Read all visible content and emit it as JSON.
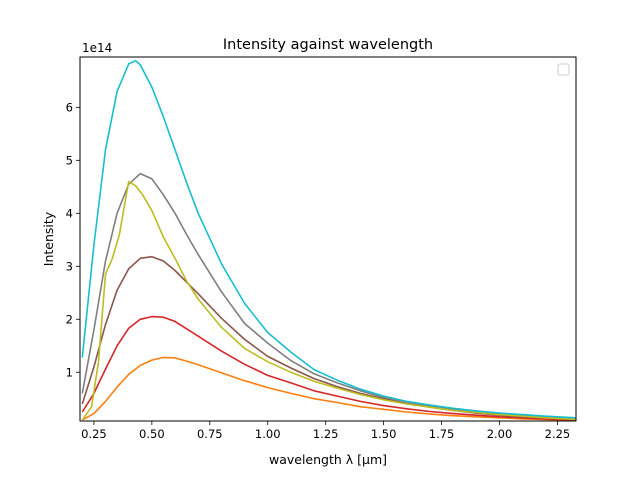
{
  "chart_data": {
    "type": "line",
    "title": "Intensity against wavelength",
    "xlabel": "wavelength λ [μm]",
    "ylabel": "Intensity",
    "y_offset_label": "1e14",
    "y_scale": 100000000000000.0,
    "xlim": [
      0.19,
      2.33
    ],
    "ylim": [
      0.08,
      6.95
    ],
    "x_ticks": [
      0.25,
      0.5,
      0.75,
      1.0,
      1.25,
      1.5,
      1.75,
      2.0,
      2.25
    ],
    "x_tick_labels": [
      "0.25",
      "0.50",
      "0.75",
      "1.00",
      "1.25",
      "1.50",
      "1.75",
      "2.00",
      "2.25"
    ],
    "y_ticks": [
      1,
      2,
      3,
      4,
      5,
      6
    ],
    "y_tick_labels": [
      "1",
      "2",
      "3",
      "4",
      "5",
      "6"
    ],
    "grid": false,
    "legend": {
      "placement": "top-right",
      "entries": []
    },
    "series": [
      {
        "color": "#ff7f0e",
        "x": [
          0.2,
          0.25,
          0.3,
          0.35,
          0.4,
          0.45,
          0.5,
          0.55,
          0.6,
          0.65,
          0.7,
          0.8,
          0.9,
          1.0,
          1.1,
          1.2,
          1.3,
          1.4,
          1.5,
          1.6,
          1.7,
          1.8,
          1.9,
          2.0,
          2.1,
          2.2,
          2.33
        ],
        "y": [
          0.1,
          0.22,
          0.45,
          0.72,
          0.96,
          1.13,
          1.23,
          1.28,
          1.27,
          1.21,
          1.14,
          0.99,
          0.84,
          0.71,
          0.6,
          0.5,
          0.43,
          0.35,
          0.3,
          0.25,
          0.21,
          0.18,
          0.16,
          0.14,
          0.12,
          0.11,
          0.09
        ]
      },
      {
        "color": "#d62728",
        "x": [
          0.2,
          0.25,
          0.3,
          0.35,
          0.4,
          0.45,
          0.5,
          0.55,
          0.6,
          0.65,
          0.7,
          0.8,
          0.9,
          1.0,
          1.1,
          1.2,
          1.3,
          1.4,
          1.5,
          1.6,
          1.7,
          1.8,
          1.9,
          2.0,
          2.1,
          2.2,
          2.33
        ],
        "y": [
          0.25,
          0.6,
          1.06,
          1.5,
          1.83,
          2.0,
          2.05,
          2.04,
          1.96,
          1.82,
          1.68,
          1.4,
          1.15,
          0.94,
          0.8,
          0.65,
          0.55,
          0.45,
          0.37,
          0.31,
          0.26,
          0.22,
          0.19,
          0.16,
          0.14,
          0.12,
          0.1
        ]
      },
      {
        "color": "#8c564b",
        "x": [
          0.2,
          0.25,
          0.3,
          0.35,
          0.4,
          0.45,
          0.5,
          0.55,
          0.6,
          0.65,
          0.7,
          0.8,
          0.9,
          1.0,
          1.1,
          1.2,
          1.3,
          1.4,
          1.5,
          1.6,
          1.7,
          1.8,
          1.9,
          2.0,
          2.1,
          2.2,
          2.33
        ],
        "y": [
          0.4,
          1.1,
          1.9,
          2.55,
          2.95,
          3.15,
          3.18,
          3.1,
          2.92,
          2.7,
          2.48,
          2.02,
          1.62,
          1.3,
          1.08,
          0.88,
          0.73,
          0.6,
          0.5,
          0.41,
          0.34,
          0.28,
          0.23,
          0.19,
          0.16,
          0.14,
          0.11
        ]
      },
      {
        "color": "#7f7f7f",
        "x": [
          0.2,
          0.25,
          0.3,
          0.35,
          0.4,
          0.45,
          0.5,
          0.55,
          0.6,
          0.65,
          0.7,
          0.8,
          0.9,
          1.0,
          1.1,
          1.2,
          1.3,
          1.4,
          1.5,
          1.6,
          1.7,
          1.8,
          1.9,
          2.0,
          2.1,
          2.2,
          2.33
        ],
        "y": [
          0.6,
          1.8,
          3.1,
          4.0,
          4.55,
          4.75,
          4.65,
          4.35,
          4.0,
          3.6,
          3.22,
          2.52,
          1.92,
          1.55,
          1.22,
          0.97,
          0.8,
          0.65,
          0.53,
          0.44,
          0.36,
          0.3,
          0.25,
          0.21,
          0.18,
          0.15,
          0.12
        ]
      },
      {
        "color": "#bcbd22",
        "x": [
          0.2,
          0.24,
          0.27,
          0.3,
          0.33,
          0.36,
          0.38,
          0.4,
          0.43,
          0.46,
          0.5,
          0.55,
          0.6,
          0.65,
          0.7,
          0.8,
          0.9,
          1.0,
          1.1,
          1.2,
          1.3,
          1.4,
          1.5,
          1.6,
          1.7,
          1.8,
          1.9,
          2.0,
          2.1,
          2.2,
          2.33
        ],
        "y": [
          0.1,
          0.35,
          1.2,
          2.85,
          3.15,
          3.6,
          4.1,
          4.6,
          4.52,
          4.35,
          4.05,
          3.55,
          3.15,
          2.72,
          2.38,
          1.85,
          1.45,
          1.2,
          1.0,
          0.83,
          0.7,
          0.58,
          0.48,
          0.4,
          0.34,
          0.28,
          0.24,
          0.2,
          0.17,
          0.14,
          0.11
        ]
      },
      {
        "color": "#17becf",
        "x": [
          0.2,
          0.25,
          0.3,
          0.35,
          0.4,
          0.43,
          0.45,
          0.5,
          0.55,
          0.6,
          0.65,
          0.7,
          0.8,
          0.9,
          1.0,
          1.1,
          1.2,
          1.3,
          1.4,
          1.5,
          1.6,
          1.7,
          1.8,
          1.9,
          2.0,
          2.1,
          2.2,
          2.33
        ],
        "y": [
          1.28,
          3.4,
          5.2,
          6.3,
          6.82,
          6.88,
          6.8,
          6.38,
          5.82,
          5.2,
          4.58,
          4.0,
          3.05,
          2.3,
          1.75,
          1.38,
          1.05,
          0.85,
          0.68,
          0.55,
          0.45,
          0.38,
          0.32,
          0.27,
          0.23,
          0.2,
          0.17,
          0.14
        ]
      }
    ]
  }
}
